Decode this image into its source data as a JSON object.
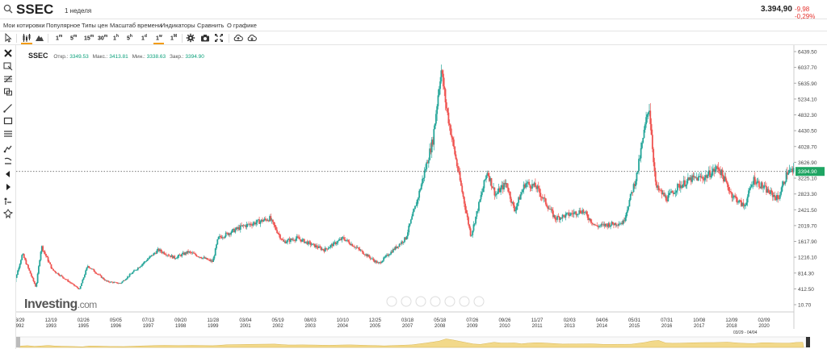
{
  "header": {
    "symbol": "SSEC",
    "interval": "1 неделя",
    "price": "3.394,90",
    "change": "-9,98",
    "change_pct": "-0,29%",
    "change_color": "#e5322d"
  },
  "menu": [
    "Мои котировки",
    "Популярное",
    "Типы цен",
    "Масштаб времени",
    "Индикаторы",
    "Сравнить",
    "О графике"
  ],
  "toolbar": {
    "timeframes": [
      {
        "label": "1",
        "sup": "m"
      },
      {
        "label": "5",
        "sup": "m"
      },
      {
        "label": "15",
        "sup": "m"
      },
      {
        "label": "30",
        "sup": "m"
      },
      {
        "label": "1",
        "sup": "h"
      },
      {
        "label": "5",
        "sup": "h"
      },
      {
        "label": "1",
        "sup": "d"
      },
      {
        "label": "1",
        "sup": "w"
      },
      {
        "label": "1",
        "sup": "M"
      }
    ],
    "selected_timeframe": "1w",
    "accent": "#f39c12",
    "icons": [
      "cursor-icon",
      "candles-icon",
      "mountain-icon",
      "gear-icon",
      "camera-icon",
      "fullscreen-icon",
      "cloud-upload-icon",
      "cloud-download-icon"
    ]
  },
  "left_tools": [
    "close-icon",
    "crosshair-icon",
    "fib-icon",
    "pattern-icon",
    "trendline-icon",
    "rectangle-icon",
    "hlines-icon",
    "brush-icon",
    "pitchfork-icon",
    "arrow-left-icon",
    "arrow-right-icon",
    "measure-icon",
    "magnet-icon"
  ],
  "legend": {
    "symbol": "SSEC",
    "open_label": "Откр.:",
    "open": "3349.53",
    "high_label": "Макс.:",
    "high": "3413.81",
    "low_label": "Мин.:",
    "low": "3338.63",
    "close_label": "Закр.:",
    "close": "3394.90"
  },
  "logo": {
    "brand": "Investing",
    "suffix": ".com"
  },
  "range_label": "03/29 - 04/04",
  "chart_data": {
    "type": "candlestick",
    "ylim": [
      10.7,
      6439.5
    ],
    "y_ticks": [
      "6439.50",
      "6037.70",
      "5635.90",
      "5234.10",
      "4832.30",
      "4430.50",
      "4028.70",
      "3626.90",
      "3225.10",
      "2823.30",
      "2421.50",
      "2019.70",
      "1617.90",
      "1216.10",
      "814.30",
      "412.50",
      "10.70"
    ],
    "y_tick_values": [
      6439.5,
      6037.7,
      5635.9,
      5234.1,
      4832.3,
      4430.5,
      4028.7,
      3626.9,
      3225.1,
      2823.3,
      2421.5,
      2019.7,
      1617.9,
      1216.1,
      814.3,
      412.5,
      10.7
    ],
    "x_ticks": [
      {
        "date": "03/29",
        "year": "1992"
      },
      {
        "date": "12/19",
        "year": "1993"
      },
      {
        "date": "02/26",
        "year": "1995"
      },
      {
        "date": "05/05",
        "year": "1996"
      },
      {
        "date": "07/13",
        "year": "1997"
      },
      {
        "date": "09/20",
        "year": "1998"
      },
      {
        "date": "11/28",
        "year": "1999"
      },
      {
        "date": "03/04",
        "year": "2001"
      },
      {
        "date": "05/19",
        "year": "2002"
      },
      {
        "date": "08/03",
        "year": "2003"
      },
      {
        "date": "10/10",
        "year": "2004"
      },
      {
        "date": "12/25",
        "year": "2005"
      },
      {
        "date": "03/18",
        "year": "2007"
      },
      {
        "date": "05/18",
        "year": "2008"
      },
      {
        "date": "07/26",
        "year": "2009"
      },
      {
        "date": "09/26",
        "year": "2010"
      },
      {
        "date": "11/27",
        "year": "2011"
      },
      {
        "date": "02/03",
        "year": "2013"
      },
      {
        "date": "04/06",
        "year": "2014"
      },
      {
        "date": "05/31",
        "year": "2015"
      },
      {
        "date": "07/31",
        "year": "2016"
      },
      {
        "date": "10/08",
        "year": "2017"
      },
      {
        "date": "12/09",
        "year": "2018"
      },
      {
        "date": "02/09",
        "year": "2020"
      }
    ],
    "current_price": 3394.9,
    "current_price_label": "3394.90",
    "up_color": "#26a69a",
    "down_color": "#ef5350",
    "series_keypoints": [
      [
        "1992",
        300
      ],
      [
        "1992.4",
        1300
      ],
      [
        "1992.9",
        450
      ],
      [
        "1993.1",
        1500
      ],
      [
        "1993.5",
        900
      ],
      [
        "1994.5",
        400
      ],
      [
        "1994.8",
        1000
      ],
      [
        "1995.5",
        600
      ],
      [
        "1996.0",
        550
      ],
      [
        "1996.9",
        1100
      ],
      [
        "1997.4",
        1400
      ],
      [
        "1998.0",
        1200
      ],
      [
        "1998.5",
        1350
      ],
      [
        "1999.4",
        1100
      ],
      [
        "1999.6",
        1700
      ],
      [
        "2000.5",
        2000
      ],
      [
        "2001.5",
        2200
      ],
      [
        "2002.0",
        1600
      ],
      [
        "2002.5",
        1700
      ],
      [
        "2003.5",
        1400
      ],
      [
        "2004.2",
        1700
      ],
      [
        "2005.5",
        1050
      ],
      [
        "2006.5",
        1700
      ],
      [
        "2006.9",
        2600
      ],
      [
        "2007.5",
        4200
      ],
      [
        "2007.8",
        6000
      ],
      [
        "2008.0",
        5000
      ],
      [
        "2008.4",
        3500
      ],
      [
        "2008.9",
        1750
      ],
      [
        "2009.5",
        3400
      ],
      [
        "2009.8",
        2800
      ],
      [
        "2010.2",
        3100
      ],
      [
        "2010.5",
        2400
      ],
      [
        "2010.9",
        3100
      ],
      [
        "2011.3",
        3000
      ],
      [
        "2012.0",
        2200
      ],
      [
        "2013.0",
        2400
      ],
      [
        "2013.5",
        2000
      ],
      [
        "2014.0",
        2050
      ],
      [
        "2014.5",
        2100
      ],
      [
        "2015.0",
        3300
      ],
      [
        "2015.45",
        5100
      ],
      [
        "2015.7",
        3000
      ],
      [
        "2016.1",
        2700
      ],
      [
        "2016.5",
        3000
      ],
      [
        "2017.0",
        3200
      ],
      [
        "2017.5",
        3250
      ],
      [
        "2018.0",
        3500
      ],
      [
        "2018.5",
        2800
      ],
      [
        "2018.95",
        2500
      ],
      [
        "2019.3",
        3200
      ],
      [
        "2019.8",
        2900
      ],
      [
        "2020.2",
        2700
      ],
      [
        "2020.55",
        3400
      ],
      [
        "2020.75",
        3395
      ]
    ]
  }
}
